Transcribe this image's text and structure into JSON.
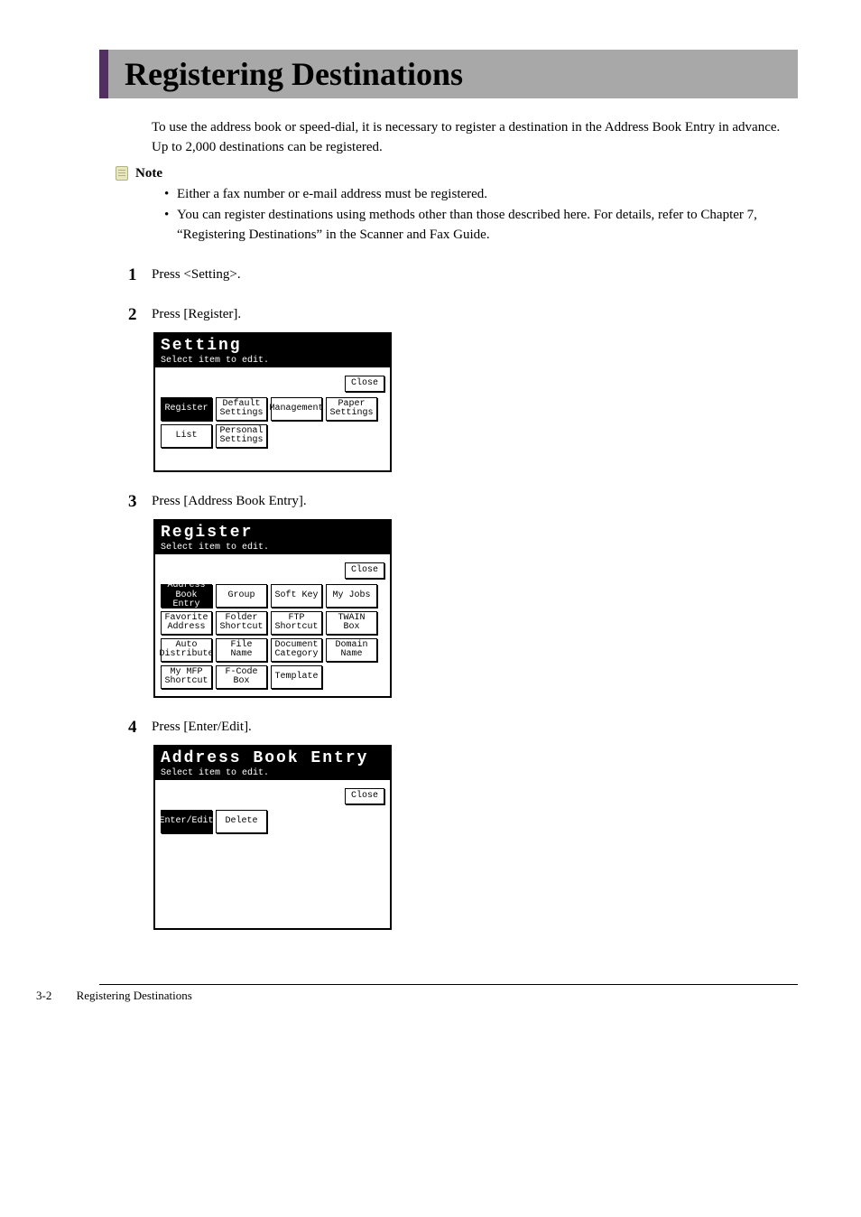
{
  "title": "Registering Destinations",
  "intro": "To use the address book or speed-dial, it is necessary to register a destination in the Address Book Entry in advance. Up to 2,000 destinations can be registered.",
  "note_label": "Note",
  "notes": [
    "Either a fax number or e-mail address must be registered.",
    "You can register destinations using methods other than those described here. For details, refer to Chapter 7, “Registering Destinations” in the Scanner and Fax Guide."
  ],
  "steps": {
    "s1": {
      "num": "1",
      "text": "Press <Setting>."
    },
    "s2": {
      "num": "2",
      "text": "Press [Register]."
    },
    "s3": {
      "num": "3",
      "text": "Press [Address Book Entry]."
    },
    "s4": {
      "num": "4",
      "text": "Press [Enter/Edit]."
    }
  },
  "lcd_common": {
    "subtitle": "Select item to edit.",
    "close": "Close"
  },
  "lcd1": {
    "title": "Setting",
    "buttons": {
      "register": "Register",
      "default": "Default\nSettings",
      "management": "Management",
      "paper": "Paper\nSettings",
      "list": "List",
      "personal": "Personal\nSettings"
    }
  },
  "lcd2": {
    "title": "Register",
    "buttons": {
      "addrbook": "Address\nBook Entry",
      "group": "Group",
      "softkey": "Soft Key",
      "myjobs": "My Jobs",
      "favaddr": "Favorite\nAddress",
      "folder": "Folder\nShortcut",
      "ftp": "FTP\nShortcut",
      "twain": "TWAIN Box",
      "auto": "Auto\nDistribute",
      "filename": "File Name",
      "doccat": "Document\nCategory",
      "domain": "Domain\nName",
      "mymfp": "My MFP\nShortcut",
      "fcode": "F-Code\nBox",
      "template": "Template"
    }
  },
  "lcd3": {
    "title": "Address Book Entry",
    "buttons": {
      "enteredit": "Enter/Edit",
      "delete": "Delete"
    }
  },
  "footer": {
    "page": "3-2",
    "section": "Registering Destinations"
  },
  "colors": {
    "accent": "#522e61",
    "title_bg": "#a8a8a8"
  }
}
